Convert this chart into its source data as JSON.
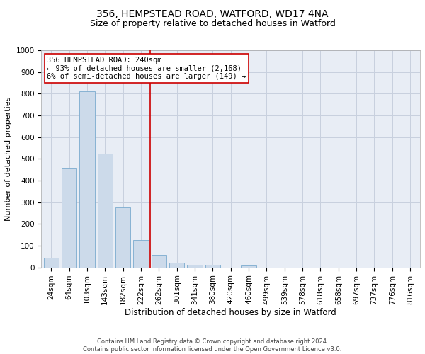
{
  "title1": "356, HEMPSTEAD ROAD, WATFORD, WD17 4NA",
  "title2": "Size of property relative to detached houses in Watford",
  "xlabel": "Distribution of detached houses by size in Watford",
  "ylabel": "Number of detached properties",
  "footnote1": "Contains HM Land Registry data © Crown copyright and database right 2024.",
  "footnote2": "Contains public sector information licensed under the Open Government Licence v3.0.",
  "categories": [
    "24sqm",
    "64sqm",
    "103sqm",
    "143sqm",
    "182sqm",
    "222sqm",
    "262sqm",
    "301sqm",
    "341sqm",
    "380sqm",
    "420sqm",
    "460sqm",
    "499sqm",
    "539sqm",
    "578sqm",
    "618sqm",
    "658sqm",
    "697sqm",
    "737sqm",
    "776sqm",
    "816sqm"
  ],
  "values": [
    45,
    460,
    810,
    525,
    275,
    125,
    58,
    22,
    11,
    11,
    0,
    8,
    0,
    0,
    0,
    0,
    0,
    0,
    0,
    0,
    0
  ],
  "bar_color": "#ccdaea",
  "bar_edge_color": "#7aaace",
  "ref_line_x": 5.5,
  "ref_line_color": "#cc0000",
  "ref_line_label": "356 HEMPSTEAD ROAD: 240sqm",
  "annotation_line1": "← 93% of detached houses are smaller (2,168)",
  "annotation_line2": "6% of semi-detached houses are larger (149) →",
  "annotation_box_color": "#cc0000",
  "ylim": [
    0,
    1000
  ],
  "yticks": [
    0,
    100,
    200,
    300,
    400,
    500,
    600,
    700,
    800,
    900,
    1000
  ],
  "grid_color": "#c8d0de",
  "bg_color": "#e8edf5",
  "title1_fontsize": 10,
  "title2_fontsize": 9,
  "xlabel_fontsize": 8.5,
  "ylabel_fontsize": 8,
  "tick_fontsize": 7.5,
  "annot_fontsize": 7.5,
  "footnote_fontsize": 6
}
